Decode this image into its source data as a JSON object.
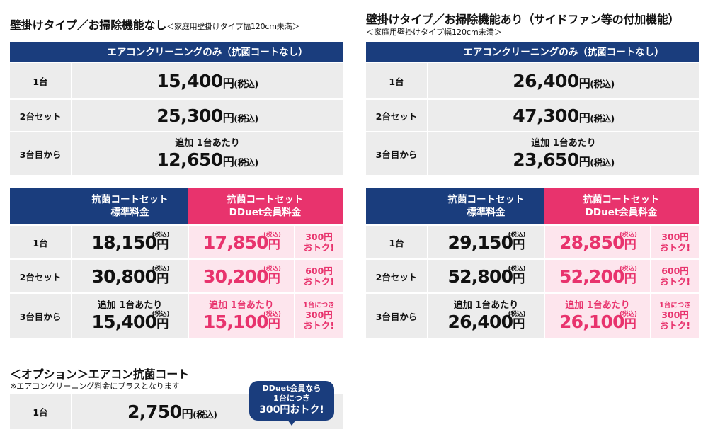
{
  "left": {
    "heading": "壁掛けタイプ／お掃除機能なし",
    "heading_sub": "＜家庭用壁掛けタイプ幅120cm未満＞",
    "basic": {
      "header": "エアコンクリーニングのみ（抗菌コートなし）",
      "rows": [
        {
          "label": "1台",
          "top": "",
          "price": "15,400",
          "yen": "円",
          "tax": "(税込)"
        },
        {
          "label": "2台セット",
          "top": "",
          "price": "25,300",
          "yen": "円",
          "tax": "(税込)"
        },
        {
          "label": "3台目から",
          "top": "追加 1台あたり",
          "price": "12,650",
          "yen": "円",
          "tax": "(税込)"
        }
      ]
    },
    "coat": {
      "header_std": "抗菌コートセット\n標準料金",
      "header_member": "抗菌コートセット\nDDuet会員料金",
      "rows": [
        {
          "label": "1台",
          "std_top": "",
          "std_price": "18,150",
          "mem_top": "",
          "mem_price": "17,850",
          "save": "300円\nおトク!",
          "save_top": ""
        },
        {
          "label": "2台セット",
          "std_top": "",
          "std_price": "30,800",
          "mem_top": "",
          "mem_price": "30,200",
          "save": "600円\nおトク!",
          "save_top": ""
        },
        {
          "label": "3台目から",
          "std_top": "追加 1台あたり",
          "std_price": "15,400",
          "mem_top": "追加 1台あたり",
          "mem_price": "15,100",
          "save": "300円\nおトク!",
          "save_top": "1台につき"
        }
      ]
    }
  },
  "right": {
    "heading": "壁掛けタイプ／お掃除機能あり（サイドファン等の付加機能）",
    "heading_sub": "＜家庭用壁掛けタイプ幅120cm未満＞",
    "basic": {
      "header": "エアコンクリーニングのみ（抗菌コートなし）",
      "rows": [
        {
          "label": "1台",
          "top": "",
          "price": "26,400",
          "yen": "円",
          "tax": "(税込)"
        },
        {
          "label": "2台セット",
          "top": "",
          "price": "47,300",
          "yen": "円",
          "tax": "(税込)"
        },
        {
          "label": "3台目から",
          "top": "追加 1台あたり",
          "price": "23,650",
          "yen": "円",
          "tax": "(税込)"
        }
      ]
    },
    "coat": {
      "header_std": "抗菌コートセット\n標準料金",
      "header_member": "抗菌コートセット\nDDuet会員料金",
      "rows": [
        {
          "label": "1台",
          "std_top": "",
          "std_price": "29,150",
          "mem_top": "",
          "mem_price": "28,850",
          "save": "300円\nおトク!",
          "save_top": ""
        },
        {
          "label": "2台セット",
          "std_top": "",
          "std_price": "52,800",
          "mem_top": "",
          "mem_price": "52,200",
          "save": "600円\nおトク!",
          "save_top": ""
        },
        {
          "label": "3台目から",
          "std_top": "追加 1台あたり",
          "std_price": "26,400",
          "mem_top": "追加 1台あたり",
          "mem_price": "26,100",
          "save": "300円\nおトク!",
          "save_top": "1台につき"
        }
      ]
    }
  },
  "common": {
    "yen": "円",
    "tax": "(税込)"
  },
  "option": {
    "heading": "＜オプション＞エアコン抗菌コート",
    "note": "※エアコンクリーニング料金にプラスとなります",
    "label": "1台",
    "price": "2,750",
    "yen": "円",
    "tax": "(税込)",
    "bubble_line1": "DDuet会員なら",
    "bubble_line2": "1台につき",
    "bubble_line3": "300円おトク!"
  },
  "colors": {
    "navy": "#1a3d7d",
    "pink": "#e8336d",
    "gray": "#ececec",
    "pink_light": "#fde5ed"
  }
}
